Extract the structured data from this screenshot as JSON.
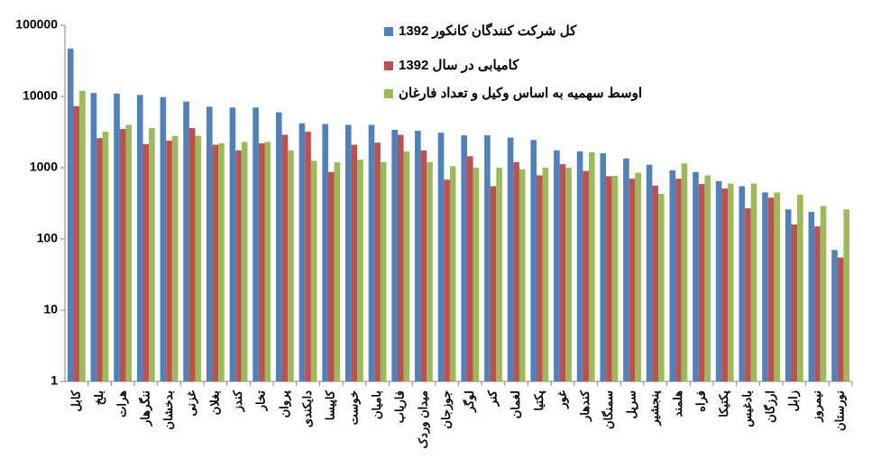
{
  "chart_data": {
    "type": "bar",
    "log_scale": true,
    "legend": "top-right",
    "categories": [
      "کابل",
      "بلخ",
      "هرات",
      "ننگرهار",
      "بدخشان",
      "غزنی",
      "بغلان",
      "کندز",
      "تخار",
      "پروان",
      "دایکندی",
      "کاپیسا",
      "خوست",
      "بامیان",
      "فاریاب",
      "میدان وردک",
      "جوزجان",
      "لوگر",
      "کنر",
      "لغمان",
      "پکتیا",
      "غور",
      "کندهار",
      "سمنگان",
      "سرپل",
      "پنجشیر",
      "هلمند",
      "فراه",
      "پکتیکا",
      "بادغیس",
      "ارزگان",
      "زابل",
      "نیمروز",
      "نورستان"
    ],
    "series": [
      {
        "name": "کل شرکت کنندگان  کانکور 1392",
        "color": "#4f81bd",
        "values": [
          47000,
          11200,
          11000,
          10500,
          9800,
          8500,
          7200,
          7000,
          7000,
          6000,
          4200,
          4100,
          4000,
          4000,
          3400,
          3300,
          3100,
          2850,
          2850,
          2650,
          2450,
          1750,
          1700,
          1600,
          1350,
          1100,
          920,
          870,
          650,
          550,
          450,
          260,
          240,
          70
        ]
      },
      {
        "name": "کامیابی در سال 1392",
        "color": "#c0504d",
        "values": [
          7300,
          2600,
          3500,
          2150,
          2400,
          3600,
          2100,
          1750,
          2200,
          2900,
          3200,
          870,
          2100,
          2250,
          2900,
          1750,
          680,
          1450,
          550,
          1200,
          780,
          1120,
          900,
          760,
          700,
          560,
          700,
          590,
          510,
          270,
          380,
          160,
          150,
          55
        ]
      },
      {
        "name": "اوسط سهمیه به اساس وکیل و تعداد فارغان",
        "color": "#9bbb59",
        "values": [
          12000,
          3200,
          4000,
          3600,
          2800,
          2800,
          2200,
          2300,
          2300,
          1750,
          1250,
          1200,
          1300,
          1200,
          1700,
          1200,
          1050,
          1000,
          1000,
          950,
          1000,
          1000,
          1650,
          770,
          850,
          430,
          1150,
          780,
          600,
          600,
          450,
          420,
          290,
          260
        ]
      }
    ],
    "ylim": [
      1,
      100000
    ],
    "yticks": [
      1,
      10,
      100,
      1000,
      10000,
      100000
    ]
  }
}
